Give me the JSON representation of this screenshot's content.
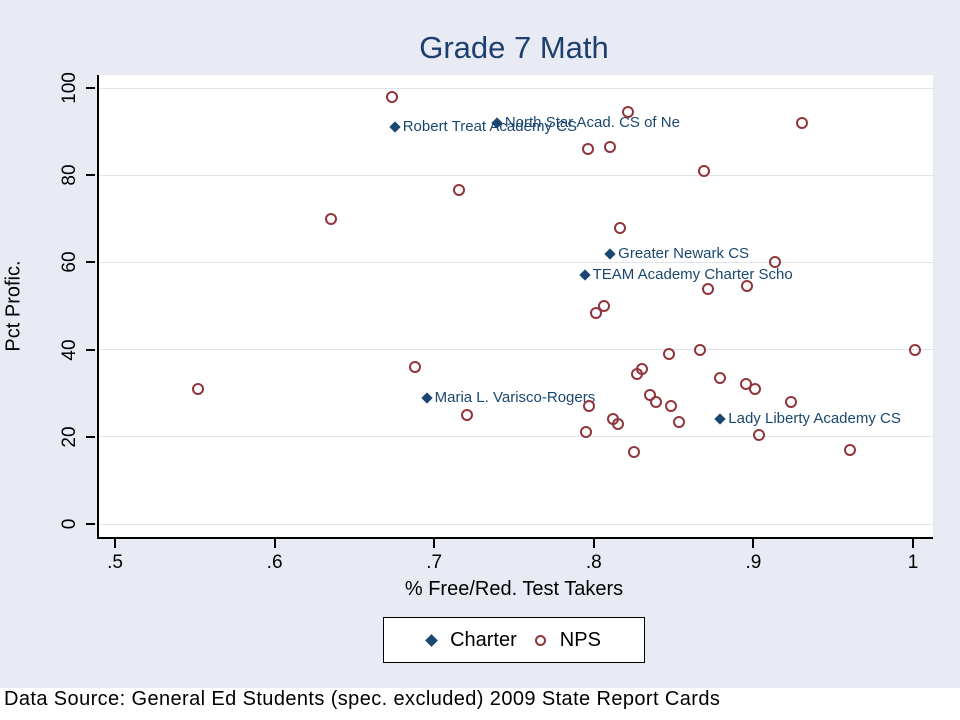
{
  "figure": {
    "title": "Grade 7 Math",
    "source_note": "Data Source: General Ed Students (spec. excluded) 2009 State Report Cards",
    "background_color": "#e8ebf3",
    "title_color": "#1e3f6f",
    "charter_color": "#1a476f",
    "nps_color": "#90353b"
  },
  "legend": {
    "charter_label": "Charter",
    "nps_label": "NPS"
  },
  "chart_data": {
    "type": "scatter",
    "title": "Grade 7 Math",
    "xlabel": "% Free/Red. Test Takers",
    "ylabel": "Pct Profic.",
    "xlim": [
      0.5,
      1.0
    ],
    "ylim": [
      0,
      100
    ],
    "grid": true,
    "legend_position": "bottom",
    "x_ticks": [
      {
        "value": 0.5,
        "label": ".5"
      },
      {
        "value": 0.6,
        "label": ".6"
      },
      {
        "value": 0.7,
        "label": ".7"
      },
      {
        "value": 0.8,
        "label": ".8"
      },
      {
        "value": 0.9,
        "label": ".9"
      },
      {
        "value": 1.0,
        "label": "1"
      }
    ],
    "y_ticks": [
      {
        "value": 0,
        "label": "0"
      },
      {
        "value": 20,
        "label": "20"
      },
      {
        "value": 40,
        "label": "40"
      },
      {
        "value": 60,
        "label": "60"
      },
      {
        "value": 80,
        "label": "80"
      },
      {
        "value": 100,
        "label": "100"
      }
    ],
    "series": [
      {
        "name": "Charter",
        "marker": "diamond-filled",
        "color": "#1a476f",
        "points": [
          {
            "x": 0.674,
            "y": 91,
            "label": "Robert Treat Academy CS"
          },
          {
            "x": 0.738,
            "y": 92,
            "label": "North Star Acad. CS of Ne"
          },
          {
            "x": 0.809,
            "y": 62,
            "label": "Greater Newark CS"
          },
          {
            "x": 0.793,
            "y": 57,
            "label": "TEAM Academy Charter Scho"
          },
          {
            "x": 0.694,
            "y": 29,
            "label": "Maria L. Varisco-Rogers"
          },
          {
            "x": 0.878,
            "y": 24,
            "label": "Lady Liberty Academy CS"
          }
        ]
      },
      {
        "name": "NPS",
        "marker": "circle-open",
        "color": "#90353b",
        "points": [
          {
            "x": 0.672,
            "y": 98
          },
          {
            "x": 0.82,
            "y": 94.5
          },
          {
            "x": 0.929,
            "y": 92
          },
          {
            "x": 0.795,
            "y": 86
          },
          {
            "x": 0.809,
            "y": 86.5
          },
          {
            "x": 0.868,
            "y": 81
          },
          {
            "x": 0.714,
            "y": 76.5
          },
          {
            "x": 0.634,
            "y": 70
          },
          {
            "x": 0.815,
            "y": 68
          },
          {
            "x": 0.912,
            "y": 60
          },
          {
            "x": 0.87,
            "y": 54
          },
          {
            "x": 0.895,
            "y": 54.5
          },
          {
            "x": 0.805,
            "y": 50
          },
          {
            "x": 0.8,
            "y": 48.5
          },
          {
            "x": 0.687,
            "y": 36
          },
          {
            "x": 0.551,
            "y": 31
          },
          {
            "x": 0.719,
            "y": 25
          },
          {
            "x": 0.796,
            "y": 27
          },
          {
            "x": 0.826,
            "y": 34.5
          },
          {
            "x": 0.829,
            "y": 35.5
          },
          {
            "x": 0.846,
            "y": 39
          },
          {
            "x": 0.865,
            "y": 40
          },
          {
            "x": 0.878,
            "y": 33.5
          },
          {
            "x": 0.894,
            "y": 32
          },
          {
            "x": 0.9,
            "y": 31
          },
          {
            "x": 0.834,
            "y": 29.5
          },
          {
            "x": 0.838,
            "y": 28
          },
          {
            "x": 0.847,
            "y": 27
          },
          {
            "x": 0.852,
            "y": 23.5
          },
          {
            "x": 0.811,
            "y": 24
          },
          {
            "x": 0.814,
            "y": 23
          },
          {
            "x": 0.794,
            "y": 21
          },
          {
            "x": 0.902,
            "y": 20.5
          },
          {
            "x": 0.922,
            "y": 28
          },
          {
            "x": 0.959,
            "y": 17
          },
          {
            "x": 1.0,
            "y": 40
          },
          {
            "x": 0.824,
            "y": 16.5
          }
        ]
      }
    ]
  }
}
